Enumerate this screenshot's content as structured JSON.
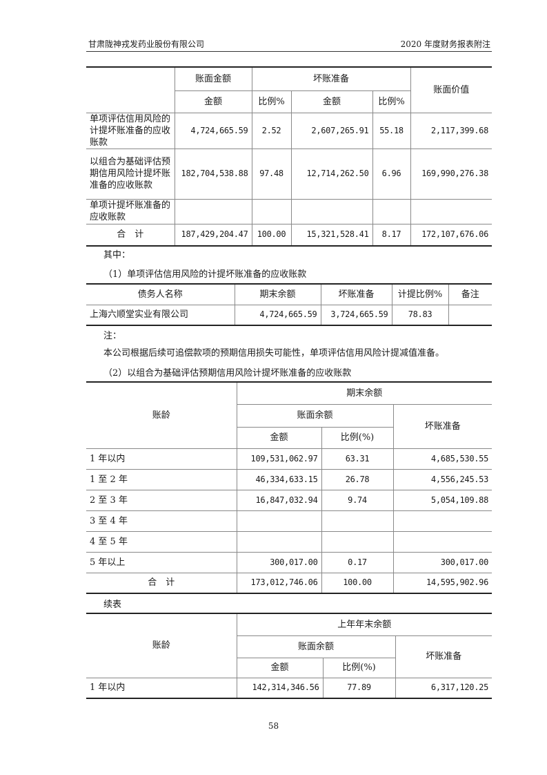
{
  "header": {
    "company": "甘肃陇神戎发药业股份有限公司",
    "report": "2020 年度财务报表附注"
  },
  "table1": {
    "head": {
      "book_balance": "账面金额",
      "bad_debt": "坏账准备",
      "book_value": "账面价值",
      "amount": "金额",
      "ratio": "比例%",
      "amount2": "金额",
      "ratio2": "比例%"
    },
    "rows": [
      {
        "label": "单项评估信用风险的计提坏账准备的应收账款",
        "amount": "4,724,665.59",
        "ratio": "2.52",
        "bad_amount": "2,607,265.91",
        "bad_ratio": "55.18",
        "value": "2,117,399.68"
      },
      {
        "label": "以组合为基础评估预期信用风险计提坏账准备的应收账款",
        "amount": "182,704,538.88",
        "ratio": "97.48",
        "bad_amount": "12,714,262.50",
        "bad_ratio": "6.96",
        "value": "169,990,276.38"
      },
      {
        "label": "单项计提坏账准备的应收账款",
        "amount": "",
        "ratio": "",
        "bad_amount": "",
        "bad_ratio": "",
        "value": ""
      },
      {
        "label": "合　计",
        "amount": "187,429,204.47",
        "ratio": "100.00",
        "bad_amount": "15,321,528.41",
        "bad_ratio": "8.17",
        "value": "172,107,676.06"
      }
    ]
  },
  "text": {
    "among": "其中：",
    "sec1": "（1）单项评估信用风险的计提坏账准备的应收账款",
    "note": "注：",
    "para": "本公司根据后续可追偿款项的预期信用损失可能性，单项评估信用风险计提减值准备。",
    "sec2": "（2）以组合为基础评估预期信用风险计提坏账准备的应收账款",
    "cont": "续表"
  },
  "table2": {
    "head": [
      "债务人名称",
      "期末余额",
      "坏账准备",
      "计提比例%",
      "备注"
    ],
    "rows": [
      [
        "上海六顺堂实业有限公司",
        "4,724,665.59",
        "3,724,665.59",
        "78.83",
        ""
      ]
    ]
  },
  "table3": {
    "head": {
      "age": "账龄",
      "period": "期末余额",
      "book": "账面余额",
      "bad": "坏账准备",
      "amount": "金额",
      "ratio": "比例(%)"
    },
    "rows": [
      [
        "1 年以内",
        "109,531,062.97",
        "63.31",
        "4,685,530.55"
      ],
      [
        "1 至 2 年",
        "46,334,633.15",
        "26.78",
        "4,556,245.53"
      ],
      [
        "2 至 3 年",
        "16,847,032.94",
        "9.74",
        "5,054,109.88"
      ],
      [
        "3 至 4 年",
        "",
        "",
        ""
      ],
      [
        "4 至 5 年",
        "",
        "",
        ""
      ],
      [
        "5 年以上",
        "300,017.00",
        "0.17",
        "300,017.00"
      ],
      [
        "合　计",
        "173,012,746.06",
        "100.00",
        "14,595,902.96"
      ]
    ]
  },
  "table4": {
    "head": {
      "age": "账龄",
      "period": "上年年末余额",
      "book": "账面余额",
      "bad": "坏账准备",
      "amount": "金额",
      "ratio": "比例(%)"
    },
    "rows": [
      [
        "1 年以内",
        "142,314,346.56",
        "77.89",
        "6,317,120.25"
      ]
    ]
  },
  "page_number": "58"
}
